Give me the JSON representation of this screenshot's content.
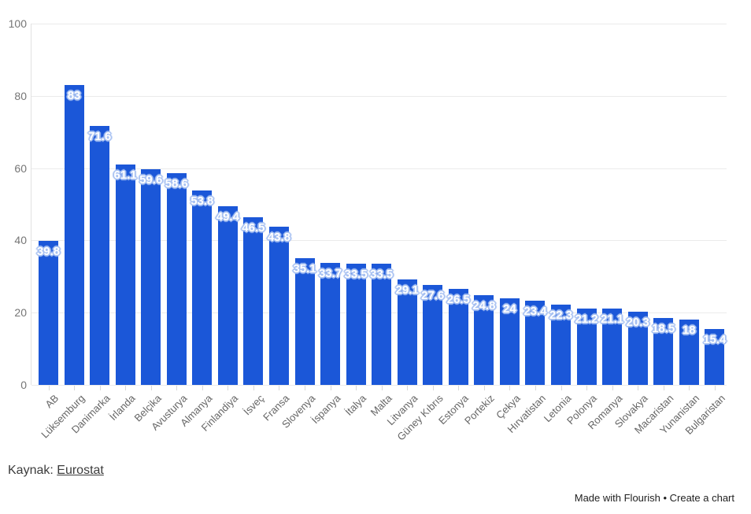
{
  "chart_data": {
    "type": "bar",
    "categories": [
      "AB",
      "Lüksemburg",
      "Danimarka",
      "İrlanda",
      "Belçika",
      "Avusturya",
      "Almanya",
      "Finlandiya",
      "İsveç",
      "Fransa",
      "Slovenya",
      "İspanya",
      "İtalya",
      "Malta",
      "Litvanya",
      "Güney Kıbrıs",
      "Estonya",
      "Portekiz",
      "Çekya",
      "Hırvatistan",
      "Letonia",
      "Polonya",
      "Romanya",
      "Slovakya",
      "Macaristan",
      "Yunanistan",
      "Bulgaristan"
    ],
    "values": [
      39.8,
      83,
      71.6,
      61.1,
      59.6,
      58.6,
      53.8,
      49.4,
      46.5,
      43.8,
      35.1,
      33.7,
      33.5,
      33.5,
      29.1,
      27.6,
      26.5,
      24.8,
      24,
      23.4,
      22.3,
      21.2,
      21.1,
      20.3,
      18.5,
      18,
      15.4
    ],
    "value_labels": [
      "39.8",
      "83",
      "71.6",
      "61.1",
      "59.6",
      "58.6",
      "53.8",
      "49.4",
      "46.5",
      "43.8",
      "35.1",
      "33.7",
      "33.5",
      "33.5",
      "29.1",
      "27.6",
      "26.5",
      "24.8",
      "24",
      "23.4",
      "22.3",
      "21.2",
      "21.1",
      "20.3",
      "18.5",
      "18",
      "15.4"
    ],
    "title": "",
    "xlabel": "",
    "ylabel": "",
    "ylim": [
      0,
      100
    ],
    "yticks": [
      0,
      20,
      40,
      60,
      80,
      100
    ],
    "grid": "horizontal",
    "legend": "none",
    "bar_color": "#1b57d8",
    "value_label_color": "#ffffff",
    "value_label_halo_color": "#a9c2f2",
    "gridline_color": "#ebebeb",
    "ytick_label_color": "#757575",
    "category_label_color": "#666666"
  },
  "footer": {
    "source_label": "Kaynak:",
    "source_link": "Eurostat"
  },
  "credit": {
    "text": "Made with Flourish • Create a chart"
  }
}
